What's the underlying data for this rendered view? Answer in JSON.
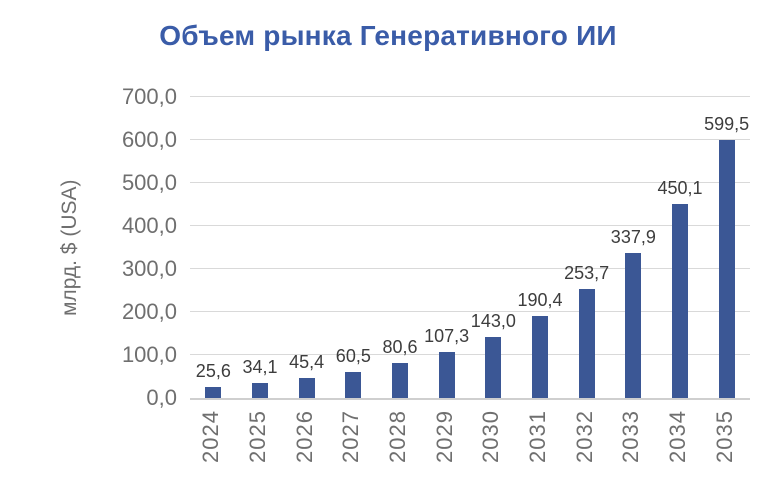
{
  "title": "Объем рынка Генеративного ИИ",
  "chart_data": {
    "type": "bar",
    "title": "Объем рынка Генеративного ИИ",
    "xlabel": "",
    "ylabel": "млрд. $ (USA)",
    "categories": [
      "2024",
      "2025",
      "2026",
      "2027",
      "2028",
      "2029",
      "2030",
      "2031",
      "2032",
      "2033",
      "2034",
      "2035"
    ],
    "values": [
      25.6,
      34.1,
      45.4,
      60.5,
      80.6,
      107.3,
      143.0,
      190.4,
      253.7,
      337.9,
      450.1,
      599.5
    ],
    "value_labels": [
      "25,6",
      "34,1",
      "45,4",
      "60,5",
      "80,6",
      "107,3",
      "143,0",
      "190,4",
      "253,7",
      "337,9",
      "450,1",
      "599,5"
    ],
    "ylim": [
      0,
      700
    ],
    "ytick_step": 100,
    "ytick_labels": [
      "0,0",
      "100,0",
      "200,0",
      "300,0",
      "400,0",
      "500,0",
      "600,0",
      "700,0"
    ],
    "grid": true,
    "legend": "none",
    "colors": {
      "bar": "#3b5795",
      "title": "#3a5ca8",
      "axis_text": "#6f6f6f",
      "value_label_text": "#3d3d3d",
      "gridline": "#d9d9d9",
      "axis_line": "#cfcfcf",
      "background": "#ffffff"
    }
  }
}
